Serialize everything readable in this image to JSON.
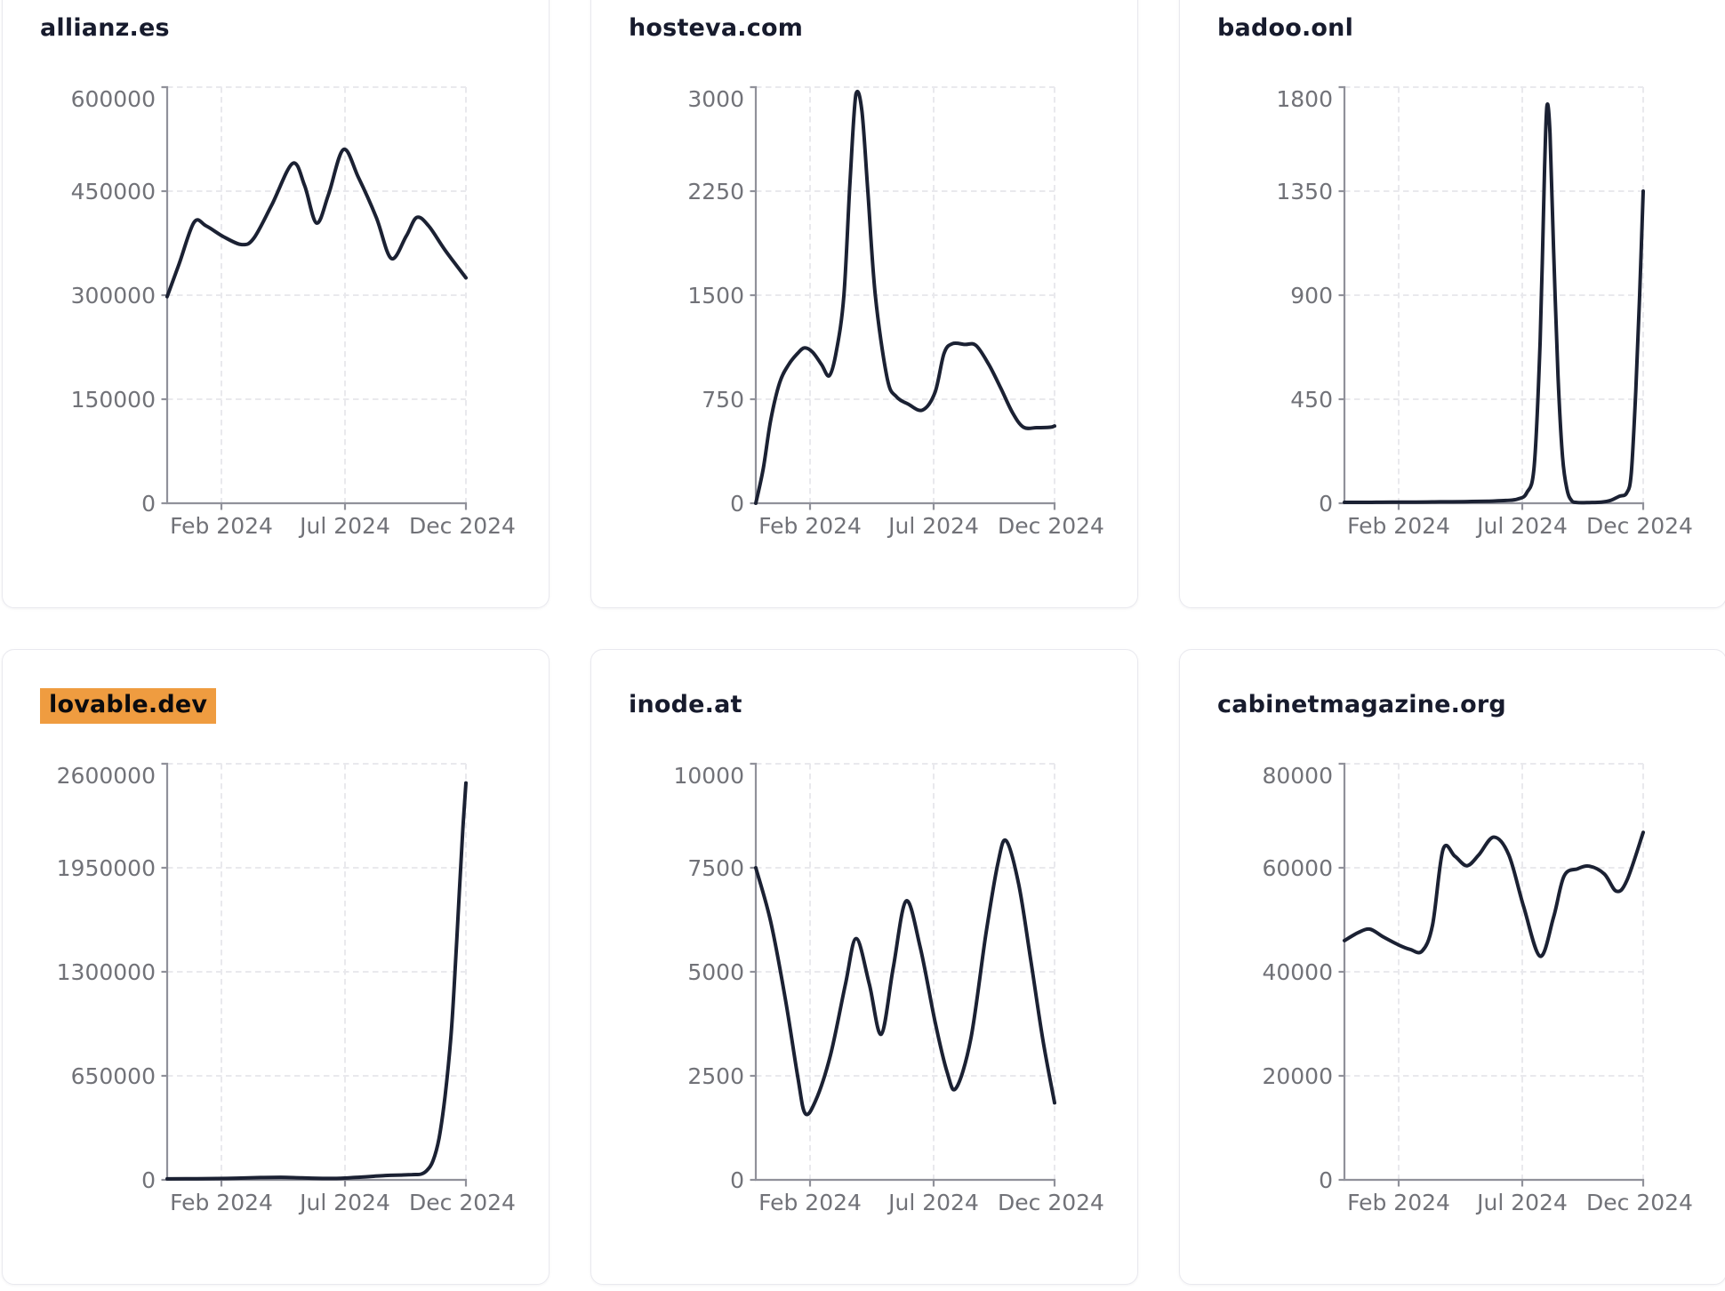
{
  "page": {
    "background": "#ffffff",
    "description_colors": {
      "line_color": "#1b2133",
      "axis_color": "#90919a",
      "tick_label_color": "#717278",
      "gridline_color": "#e9e9ed",
      "card_border_color": "#e9e9ef",
      "title_color": "#171b2d",
      "highlight_color": "#ef9c40"
    }
  },
  "chart_data": [
    {
      "type": "line",
      "title": "allianz.es",
      "highlighted": false,
      "ylim": [
        0,
        600000
      ],
      "y_tick_labels": [
        "600000",
        "450000",
        "300000",
        "150000",
        "0"
      ],
      "x_tick_labels": [
        "Feb 2024",
        "Jul 2024",
        "Dec 2024"
      ],
      "x_tick_positions": [
        0.1815,
        0.595,
        1.0
      ],
      "grid": true,
      "legend": "none",
      "points": [
        [
          0,
          298000
        ],
        [
          0.04,
          345000
        ],
        [
          0.09,
          405000
        ],
        [
          0.13,
          400000
        ],
        [
          0.19,
          384000
        ],
        [
          0.25,
          373000
        ],
        [
          0.29,
          382000
        ],
        [
          0.35,
          430000
        ],
        [
          0.42,
          490000
        ],
        [
          0.46,
          458000
        ],
        [
          0.5,
          404000
        ],
        [
          0.54,
          445000
        ],
        [
          0.59,
          510000
        ],
        [
          0.64,
          470000
        ],
        [
          0.7,
          412000
        ],
        [
          0.75,
          353000
        ],
        [
          0.8,
          385000
        ],
        [
          0.835,
          412000
        ],
        [
          0.875,
          400000
        ],
        [
          0.93,
          365000
        ],
        [
          1,
          325000
        ]
      ]
    },
    {
      "type": "line",
      "title": "hosteva.com",
      "highlighted": false,
      "ylim": [
        0,
        3000
      ],
      "y_tick_labels": [
        "3000",
        "2250",
        "1500",
        "750",
        "0"
      ],
      "x_tick_labels": [
        "Feb 2024",
        "Jul 2024",
        "Dec 2024"
      ],
      "x_tick_positions": [
        0.1815,
        0.595,
        1.0
      ],
      "grid": true,
      "legend": "none",
      "points": [
        [
          0,
          0
        ],
        [
          0.025,
          250
        ],
        [
          0.05,
          600
        ],
        [
          0.08,
          870
        ],
        [
          0.11,
          1000
        ],
        [
          0.14,
          1080
        ],
        [
          0.163,
          1120
        ],
        [
          0.19,
          1090
        ],
        [
          0.22,
          1000
        ],
        [
          0.246,
          920
        ],
        [
          0.27,
          1100
        ],
        [
          0.295,
          1500
        ],
        [
          0.315,
          2300
        ],
        [
          0.335,
          2950
        ],
        [
          0.355,
          2830
        ],
        [
          0.375,
          2250
        ],
        [
          0.4,
          1500
        ],
        [
          0.44,
          900
        ],
        [
          0.47,
          770
        ],
        [
          0.51,
          715
        ],
        [
          0.558,
          672
        ],
        [
          0.6,
          800
        ],
        [
          0.63,
          1080
        ],
        [
          0.658,
          1150
        ],
        [
          0.7,
          1145
        ],
        [
          0.737,
          1138
        ],
        [
          0.78,
          1000
        ],
        [
          0.82,
          830
        ],
        [
          0.86,
          650
        ],
        [
          0.896,
          548
        ],
        [
          0.94,
          545
        ],
        [
          0.985,
          548
        ],
        [
          1,
          557
        ]
      ]
    },
    {
      "type": "line",
      "title": "badoo.onl",
      "highlighted": false,
      "ylim": [
        0,
        1800
      ],
      "y_tick_labels": [
        "1800",
        "1350",
        "900",
        "450",
        "0"
      ],
      "x_tick_labels": [
        "Feb 2024",
        "Jul 2024",
        "Dec 2024"
      ],
      "x_tick_positions": [
        0.1815,
        0.595,
        1.0
      ],
      "grid": true,
      "legend": "none",
      "points": [
        [
          0,
          4
        ],
        [
          0.08,
          4
        ],
        [
          0.16,
          5
        ],
        [
          0.24,
          5
        ],
        [
          0.32,
          6
        ],
        [
          0.4,
          7
        ],
        [
          0.48,
          9
        ],
        [
          0.54,
          12
        ],
        [
          0.58,
          18
        ],
        [
          0.61,
          45
        ],
        [
          0.635,
          160
        ],
        [
          0.655,
          700
        ],
        [
          0.67,
          1450
        ],
        [
          0.678,
          1720
        ],
        [
          0.688,
          1600
        ],
        [
          0.7,
          1100
        ],
        [
          0.715,
          550
        ],
        [
          0.73,
          200
        ],
        [
          0.745,
          60
        ],
        [
          0.76,
          12
        ],
        [
          0.78,
          3
        ],
        [
          0.82,
          3
        ],
        [
          0.86,
          5
        ],
        [
          0.89,
          12
        ],
        [
          0.92,
          30
        ],
        [
          0.945,
          45
        ],
        [
          0.96,
          130
        ],
        [
          0.975,
          480
        ],
        [
          0.988,
          900
        ],
        [
          1,
          1350
        ]
      ]
    },
    {
      "type": "line",
      "title": "lovable.dev",
      "highlighted": true,
      "ylim": [
        0,
        2600000
      ],
      "y_tick_labels": [
        "2600000",
        "1950000",
        "1300000",
        "650000",
        "0"
      ],
      "x_tick_labels": [
        "Feb 2024",
        "Jul 2024",
        "Dec 2024"
      ],
      "x_tick_positions": [
        0.1815,
        0.595,
        1.0
      ],
      "grid": true,
      "legend": "none",
      "points": [
        [
          0,
          6000
        ],
        [
          0.1,
          7000
        ],
        [
          0.2,
          9000
        ],
        [
          0.3,
          14000
        ],
        [
          0.38,
          16000
        ],
        [
          0.45,
          12000
        ],
        [
          0.52,
          9000
        ],
        [
          0.58,
          10000
        ],
        [
          0.63,
          15000
        ],
        [
          0.68,
          21000
        ],
        [
          0.73,
          27000
        ],
        [
          0.78,
          30000
        ],
        [
          0.82,
          33000
        ],
        [
          0.85,
          36000
        ],
        [
          0.87,
          60000
        ],
        [
          0.89,
          120000
        ],
        [
          0.91,
          260000
        ],
        [
          0.93,
          520000
        ],
        [
          0.95,
          900000
        ],
        [
          0.965,
          1350000
        ],
        [
          0.978,
          1800000
        ],
        [
          0.99,
          2200000
        ],
        [
          1,
          2480000
        ]
      ]
    },
    {
      "type": "line",
      "title": "inode.at",
      "highlighted": false,
      "ylim": [
        0,
        10000
      ],
      "y_tick_labels": [
        "10000",
        "7500",
        "5000",
        "2500",
        "0"
      ],
      "x_tick_labels": [
        "Feb 2024",
        "Jul 2024",
        "Dec 2024"
      ],
      "x_tick_positions": [
        0.1815,
        0.595,
        1.0
      ],
      "grid": true,
      "legend": "none",
      "points": [
        [
          0,
          7500
        ],
        [
          0.05,
          6200
        ],
        [
          0.1,
          4300
        ],
        [
          0.14,
          2500
        ],
        [
          0.165,
          1600
        ],
        [
          0.2,
          1900
        ],
        [
          0.25,
          3000
        ],
        [
          0.3,
          4700
        ],
        [
          0.336,
          5800
        ],
        [
          0.38,
          4700
        ],
        [
          0.42,
          3500
        ],
        [
          0.46,
          5100
        ],
        [
          0.503,
          6700
        ],
        [
          0.55,
          5600
        ],
        [
          0.6,
          3800
        ],
        [
          0.64,
          2600
        ],
        [
          0.67,
          2200
        ],
        [
          0.72,
          3400
        ],
        [
          0.77,
          5900
        ],
        [
          0.81,
          7600
        ],
        [
          0.838,
          8150
        ],
        [
          0.88,
          7100
        ],
        [
          0.92,
          5300
        ],
        [
          0.96,
          3400
        ],
        [
          1,
          1850
        ]
      ]
    },
    {
      "type": "line",
      "title": "cabinetmagazine.org",
      "highlighted": false,
      "ylim": [
        0,
        80000
      ],
      "y_tick_labels": [
        "80000",
        "60000",
        "40000",
        "20000",
        "0"
      ],
      "x_tick_labels": [
        "Feb 2024",
        "Jul 2024",
        "Dec 2024"
      ],
      "x_tick_positions": [
        0.1815,
        0.595,
        1.0
      ],
      "grid": true,
      "legend": "none",
      "points": [
        [
          0,
          46000
        ],
        [
          0.045,
          47500
        ],
        [
          0.085,
          48200
        ],
        [
          0.13,
          46700
        ],
        [
          0.18,
          45200
        ],
        [
          0.22,
          44300
        ],
        [
          0.26,
          44000
        ],
        [
          0.295,
          49000
        ],
        [
          0.33,
          63500
        ],
        [
          0.37,
          62200
        ],
        [
          0.41,
          60400
        ],
        [
          0.45,
          62500
        ],
        [
          0.5,
          65900
        ],
        [
          0.55,
          62500
        ],
        [
          0.6,
          52500
        ],
        [
          0.655,
          43000
        ],
        [
          0.7,
          50500
        ],
        [
          0.735,
          58400
        ],
        [
          0.78,
          59800
        ],
        [
          0.82,
          60300
        ],
        [
          0.87,
          58800
        ],
        [
          0.91,
          55500
        ],
        [
          0.945,
          57500
        ],
        [
          1,
          66800
        ]
      ]
    }
  ]
}
